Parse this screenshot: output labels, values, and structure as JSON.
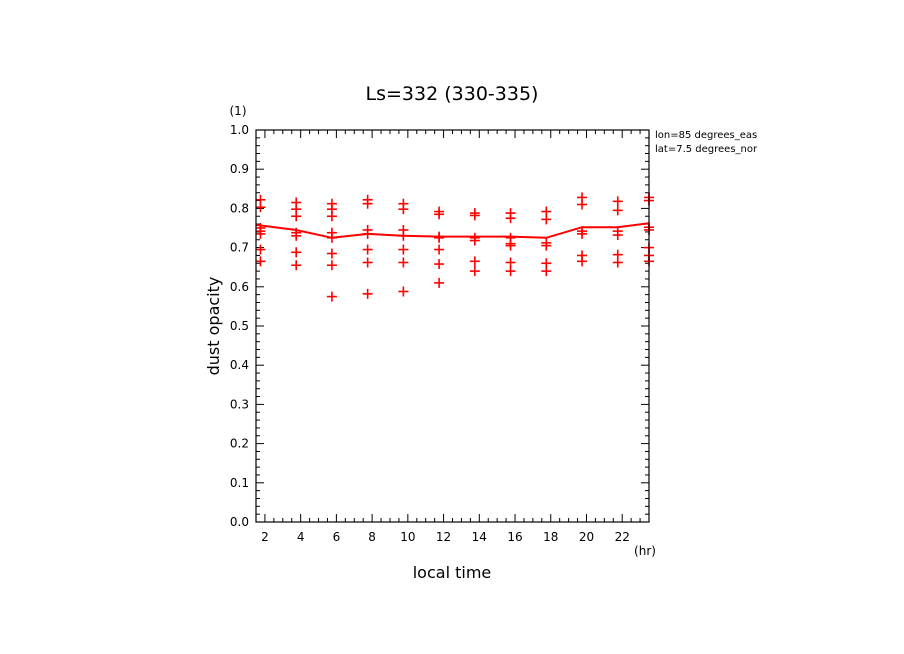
{
  "chart_data": {
    "type": "scatter",
    "title": "Ls=332 (330-335)",
    "xlabel": "local time",
    "ylabel": "dust opacity",
    "x_unit": "(hr)",
    "y_unit": "(1)",
    "annotations": [
      "lon=85 degrees_eas",
      "lat=7.5 degrees_nor"
    ],
    "xlim": [
      1.5,
      23.5
    ],
    "ylim": [
      0.0,
      1.0
    ],
    "x_ticks": [
      2,
      4,
      6,
      8,
      10,
      12,
      14,
      16,
      18,
      20,
      22
    ],
    "y_ticks": [
      "0.0",
      "0.1",
      "0.2",
      "0.3",
      "0.4",
      "0.5",
      "0.6",
      "0.7",
      "0.8",
      "0.9",
      "1.0"
    ],
    "grid": false,
    "colors": {
      "data": "#ff0000",
      "axes": "#000000"
    },
    "mean_line": {
      "x": [
        1.5,
        2,
        3.75,
        5.75,
        7.75,
        9.75,
        11.75,
        13.75,
        15.75,
        17.75,
        19.75,
        21.75,
        23.5
      ],
      "y": [
        0.758,
        0.755,
        0.745,
        0.725,
        0.735,
        0.73,
        0.728,
        0.728,
        0.728,
        0.725,
        0.752,
        0.752,
        0.762
      ]
    },
    "points": {
      "x": [
        1.75,
        1.75,
        1.75,
        1.75,
        1.75,
        1.75,
        1.75,
        3.75,
        3.75,
        3.75,
        3.75,
        3.75,
        3.75,
        3.75,
        5.75,
        5.75,
        5.75,
        5.75,
        5.75,
        5.75,
        5.75,
        5.75,
        7.75,
        7.75,
        7.75,
        7.75,
        7.75,
        7.75,
        7.75,
        9.75,
        9.75,
        9.75,
        9.75,
        9.75,
        9.75,
        9.75,
        11.75,
        11.75,
        11.75,
        11.75,
        11.75,
        11.75,
        11.75,
        13.75,
        13.75,
        13.75,
        13.75,
        13.75,
        13.75,
        15.75,
        15.75,
        15.75,
        15.75,
        15.75,
        15.75,
        15.75,
        17.75,
        17.75,
        17.75,
        17.75,
        17.75,
        17.75,
        19.75,
        19.75,
        19.75,
        19.75,
        19.75,
        19.75,
        21.75,
        21.75,
        21.75,
        21.75,
        21.75,
        21.75,
        23.5,
        23.5,
        23.5,
        23.5,
        23.5,
        23.5,
        23.5
      ],
      "y": [
        0.822,
        0.803,
        0.75,
        0.742,
        0.735,
        0.695,
        0.665,
        0.815,
        0.798,
        0.78,
        0.738,
        0.73,
        0.688,
        0.655,
        0.812,
        0.798,
        0.78,
        0.738,
        0.725,
        0.685,
        0.655,
        0.575,
        0.822,
        0.812,
        0.745,
        0.735,
        0.695,
        0.662,
        0.582,
        0.812,
        0.798,
        0.745,
        0.73,
        0.695,
        0.662,
        0.588,
        0.792,
        0.785,
        0.728,
        0.725,
        0.695,
        0.658,
        0.61,
        0.788,
        0.782,
        0.725,
        0.718,
        0.665,
        0.64,
        0.788,
        0.775,
        0.725,
        0.71,
        0.705,
        0.662,
        0.64,
        0.792,
        0.772,
        0.712,
        0.705,
        0.66,
        0.64,
        0.828,
        0.81,
        0.742,
        0.735,
        0.68,
        0.665,
        0.818,
        0.795,
        0.742,
        0.732,
        0.682,
        0.662,
        0.828,
        0.82,
        0.752,
        0.745,
        0.7,
        0.68,
        0.665
      ]
    }
  }
}
